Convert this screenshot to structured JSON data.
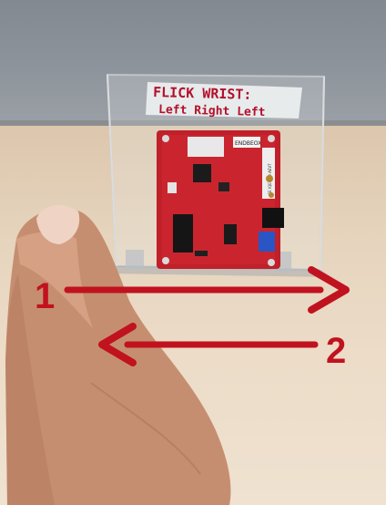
{
  "sign": {
    "line1": "FLICK WRIST:",
    "line2": "Left Right Left"
  },
  "arrows": {
    "first_number": "1",
    "second_number": "2"
  },
  "board": {
    "logo_text": "ENDBEOX",
    "side_text": "GE IQE-100 AEVT"
  },
  "colors": {
    "arrow": "#c1121f",
    "board": "#c0202a",
    "wall": "#8a9097",
    "desk": "#e6d4bd"
  }
}
